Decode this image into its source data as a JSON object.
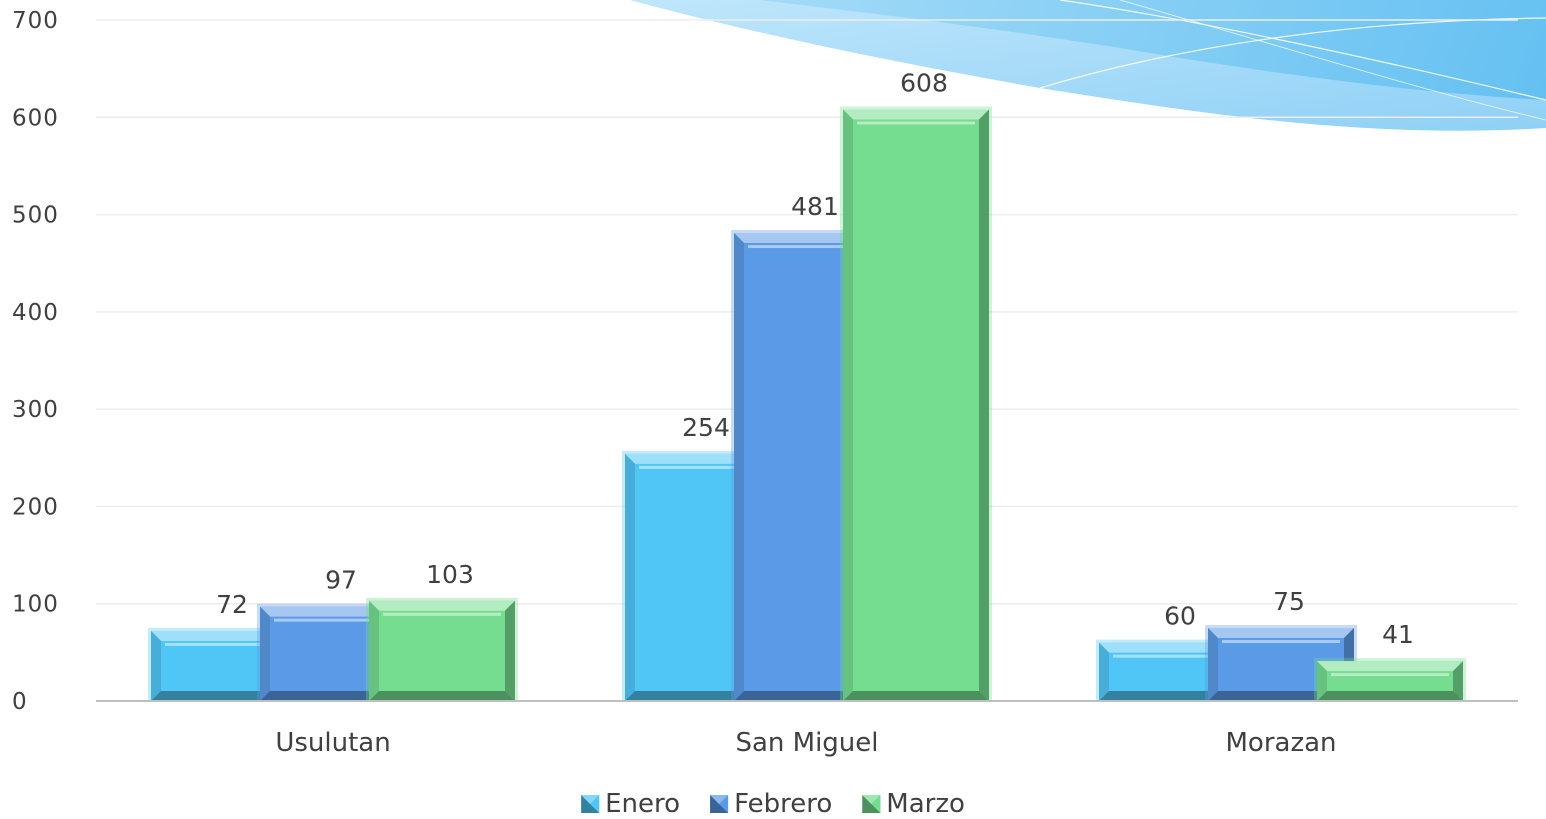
{
  "colors": {
    "Enero": "#4fc6f5",
    "Febrero": "#5b9ae6",
    "Marzo": "#74dd8f"
  },
  "chart_data": {
    "type": "bar",
    "categories": [
      "Usulutan",
      "San Miguel",
      "Morazan"
    ],
    "series": [
      {
        "name": "Enero",
        "values": [
          72,
          254,
          60
        ]
      },
      {
        "name": "Febrero",
        "values": [
          97,
          481,
          75
        ]
      },
      {
        "name": "Marzo",
        "values": [
          103,
          608,
          41
        ]
      }
    ],
    "yticks": [
      "0",
      "100",
      "200",
      "300",
      "400",
      "500",
      "600",
      "700"
    ],
    "ylim": [
      0,
      700
    ],
    "grid": true,
    "legend_position": "bottom",
    "data_labels": true
  }
}
